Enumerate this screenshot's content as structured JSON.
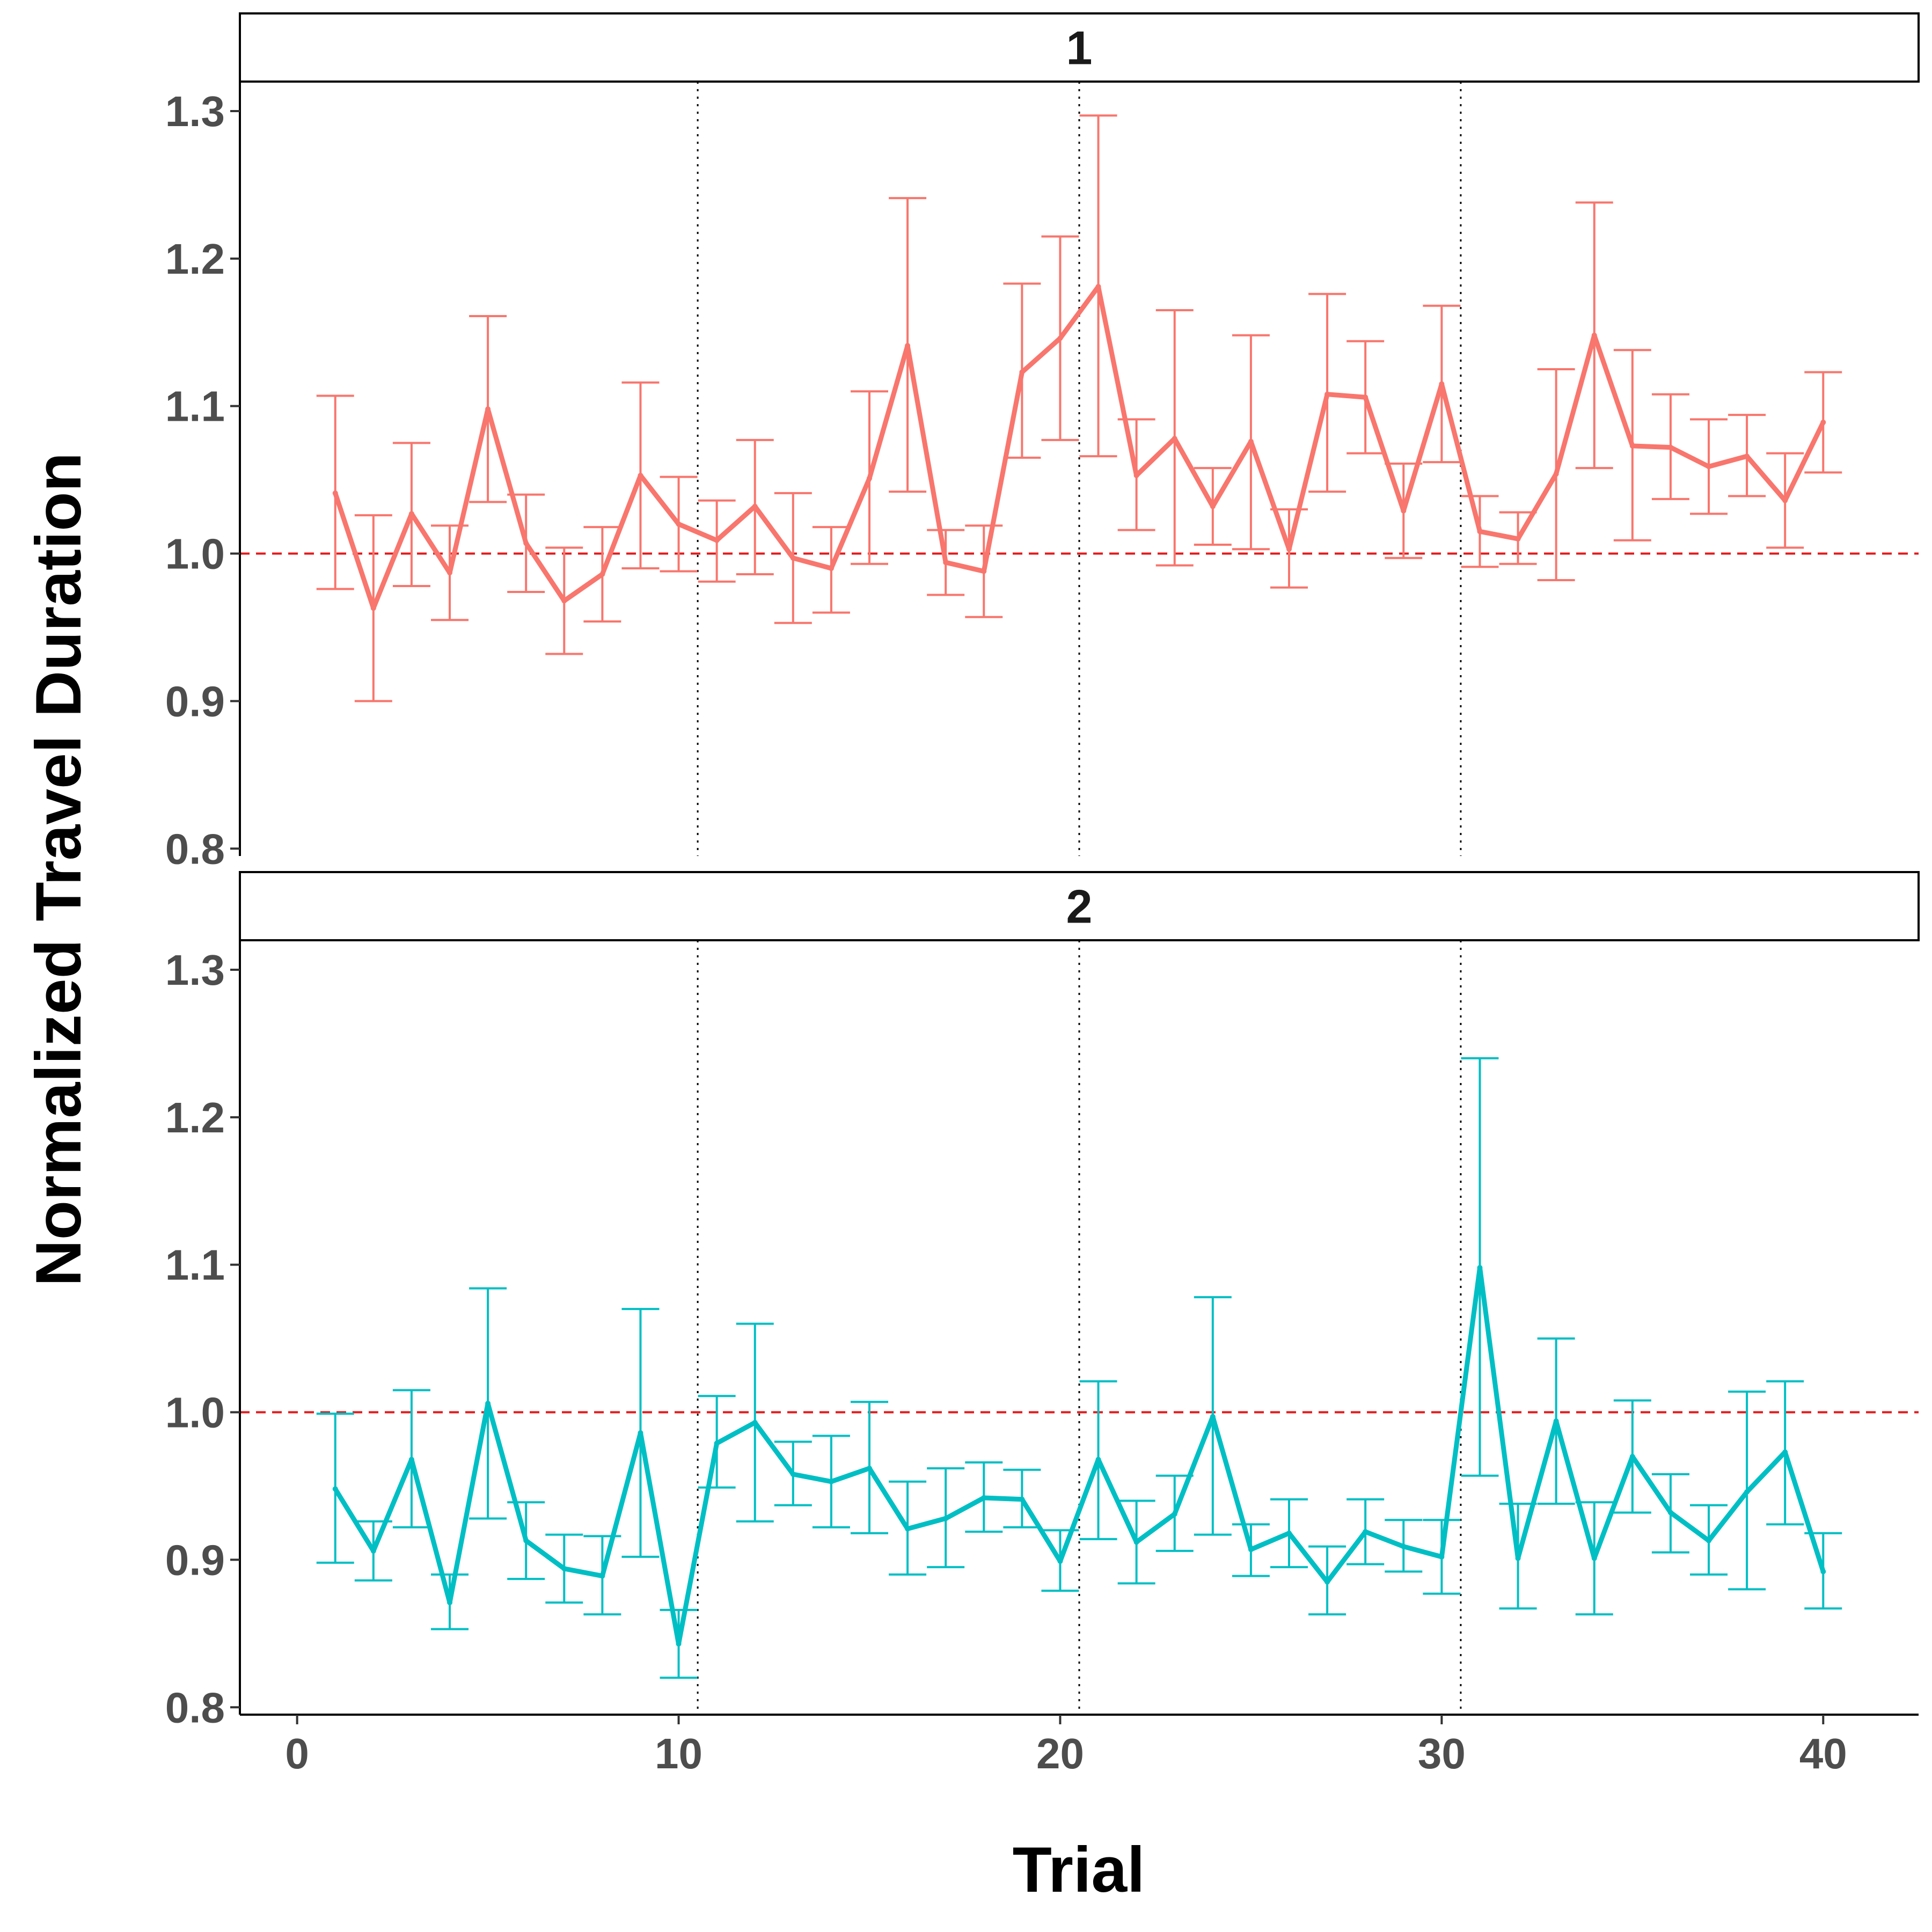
{
  "chart_data": {
    "type": "line",
    "xlabel": "Trial",
    "ylabel": "Normalized Travel Duration",
    "xlim": [
      -1.5,
      42.5
    ],
    "ylim": [
      0.795,
      1.32
    ],
    "x_ticks": [
      "0",
      "10",
      "20",
      "30",
      "40"
    ],
    "y_ticks": [
      "0.8",
      "0.9",
      "1.0",
      "1.1",
      "1.2",
      "1.3"
    ],
    "reference_line": {
      "y": 1.0,
      "color": "#e41a1c",
      "style": "dashed"
    },
    "phase_lines": [
      10.5,
      20.5,
      30.5
    ],
    "grid": false,
    "legend": "none",
    "panels": [
      {
        "label": "1",
        "color": "#F8766D",
        "x": [
          1,
          2,
          3,
          4,
          5,
          6,
          7,
          8,
          9,
          10,
          11,
          12,
          13,
          14,
          15,
          16,
          17,
          18,
          19,
          20,
          21,
          22,
          23,
          24,
          25,
          26,
          27,
          28,
          29,
          30,
          31,
          32,
          33,
          34,
          35,
          36,
          37,
          38,
          39,
          40
        ],
        "y": [
          1.041,
          0.963,
          1.027,
          0.987,
          1.098,
          1.007,
          0.968,
          0.986,
          1.053,
          1.02,
          1.009,
          1.032,
          0.997,
          0.99,
          1.051,
          1.141,
          0.994,
          0.988,
          1.123,
          1.146,
          1.181,
          1.053,
          1.078,
          1.032,
          1.076,
          1.003,
          1.108,
          1.106,
          1.029,
          1.115,
          1.015,
          1.01,
          1.054,
          1.148,
          1.073,
          1.072,
          1.059,
          1.066,
          1.036,
          1.089
        ],
        "err_low": [
          0.976,
          0.9,
          0.978,
          0.955,
          1.035,
          0.974,
          0.932,
          0.954,
          0.99,
          0.988,
          0.981,
          0.986,
          0.953,
          0.96,
          0.993,
          1.042,
          0.972,
          0.957,
          1.065,
          1.077,
          1.066,
          1.016,
          0.992,
          1.006,
          1.003,
          0.977,
          1.042,
          1.068,
          0.997,
          1.062,
          0.991,
          0.993,
          0.982,
          1.058,
          1.009,
          1.037,
          1.027,
          1.039,
          1.004,
          1.055
        ],
        "err_high": [
          1.107,
          1.026,
          1.075,
          1.019,
          1.161,
          1.04,
          1.004,
          1.018,
          1.116,
          1.052,
          1.036,
          1.077,
          1.041,
          1.018,
          1.11,
          1.241,
          1.016,
          1.019,
          1.183,
          1.215,
          1.297,
          1.091,
          1.165,
          1.058,
          1.148,
          1.03,
          1.176,
          1.144,
          1.061,
          1.168,
          1.039,
          1.028,
          1.125,
          1.238,
          1.138,
          1.108,
          1.091,
          1.094,
          1.068,
          1.123
        ]
      },
      {
        "label": "2",
        "color": "#00BFC4",
        "x": [
          1,
          2,
          3,
          4,
          5,
          6,
          7,
          8,
          9,
          10,
          11,
          12,
          13,
          14,
          15,
          16,
          17,
          18,
          19,
          20,
          21,
          22,
          23,
          24,
          25,
          26,
          27,
          28,
          29,
          30,
          31,
          32,
          33,
          34,
          35,
          36,
          37,
          38,
          39,
          40
        ],
        "y": [
          0.948,
          0.906,
          0.968,
          0.871,
          1.006,
          0.913,
          0.894,
          0.889,
          0.986,
          0.843,
          0.979,
          0.993,
          0.958,
          0.953,
          0.962,
          0.921,
          0.928,
          0.942,
          0.941,
          0.899,
          0.968,
          0.912,
          0.931,
          0.997,
          0.907,
          0.918,
          0.885,
          0.919,
          0.909,
          0.902,
          1.098,
          0.901,
          0.994,
          0.901,
          0.97,
          0.932,
          0.913,
          0.946,
          0.973,
          0.892
        ],
        "err_low": [
          0.898,
          0.886,
          0.922,
          0.853,
          0.928,
          0.887,
          0.871,
          0.863,
          0.902,
          0.82,
          0.949,
          0.926,
          0.937,
          0.922,
          0.918,
          0.89,
          0.895,
          0.919,
          0.922,
          0.879,
          0.914,
          0.884,
          0.906,
          0.917,
          0.889,
          0.895,
          0.863,
          0.897,
          0.892,
          0.877,
          0.957,
          0.867,
          0.938,
          0.863,
          0.932,
          0.905,
          0.89,
          0.88,
          0.924,
          0.867
        ],
        "err_high": [
          0.999,
          0.926,
          1.015,
          0.89,
          1.084,
          0.939,
          0.917,
          0.916,
          1.07,
          0.866,
          1.011,
          1.06,
          0.98,
          0.984,
          1.007,
          0.953,
          0.962,
          0.966,
          0.961,
          0.92,
          1.021,
          0.94,
          0.957,
          1.078,
          0.924,
          0.941,
          0.909,
          0.941,
          0.927,
          0.927,
          1.24,
          0.938,
          1.05,
          0.939,
          1.008,
          0.958,
          0.937,
          1.014,
          1.021,
          0.918
        ]
      }
    ]
  }
}
